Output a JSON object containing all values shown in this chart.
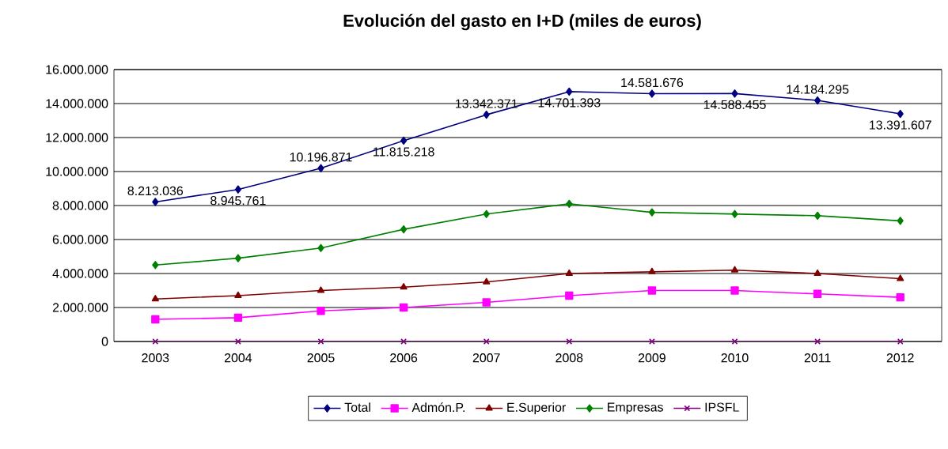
{
  "chart_data": {
    "type": "line",
    "title": "Evolución del gasto en I+D (miles de euros)",
    "categories": [
      "2003",
      "2004",
      "2005",
      "2006",
      "2007",
      "2008",
      "2009",
      "2010",
      "2011",
      "2012"
    ],
    "series": [
      {
        "name": "Total",
        "color": "#000080",
        "marker": "diamond",
        "values": [
          8213036,
          8945761,
          10196871,
          11815218,
          13342371,
          14701393,
          14581676,
          14588455,
          14184295,
          13391607
        ],
        "value_labels": [
          "8.213.036",
          "8.945.761",
          "10.196.871",
          "11.815.218",
          "13.342.371",
          "14.701.393",
          "14.581.676",
          "14.588.455",
          "14.184.295",
          "13.391.607"
        ]
      },
      {
        "name": "Admón.P.",
        "color": "#ff00ff",
        "marker": "square",
        "values": [
          1300000,
          1400000,
          1800000,
          2000000,
          2300000,
          2700000,
          3000000,
          3000000,
          2800000,
          2600000
        ]
      },
      {
        "name": "E.Superior",
        "color": "#800000",
        "marker": "triangle",
        "values": [
          2500000,
          2700000,
          3000000,
          3200000,
          3500000,
          4000000,
          4100000,
          4200000,
          4000000,
          3700000
        ]
      },
      {
        "name": "Empresas",
        "color": "#008000",
        "marker": "diamond",
        "values": [
          4500000,
          4900000,
          5500000,
          6600000,
          7500000,
          8100000,
          7600000,
          7500000,
          7400000,
          7100000
        ]
      },
      {
        "name": "IPSFL",
        "color": "#800080",
        "marker": "cross",
        "values": [
          0,
          0,
          0,
          0,
          0,
          0,
          0,
          0,
          0,
          0
        ]
      }
    ],
    "ylim": [
      0,
      16000000
    ],
    "yticks": [
      {
        "value": 0,
        "label": "0"
      },
      {
        "value": 2000000,
        "label": "2.000.000"
      },
      {
        "value": 4000000,
        "label": "4.000.000"
      },
      {
        "value": 6000000,
        "label": "6.000.000"
      },
      {
        "value": 8000000,
        "label": "8.000.000"
      },
      {
        "value": 10000000,
        "label": "10.000.000"
      },
      {
        "value": 12000000,
        "label": "12.000.000"
      },
      {
        "value": 14000000,
        "label": "14.000.000"
      },
      {
        "value": 16000000,
        "label": "16.000.000"
      }
    ],
    "grid": "y",
    "legend": "bottom"
  }
}
